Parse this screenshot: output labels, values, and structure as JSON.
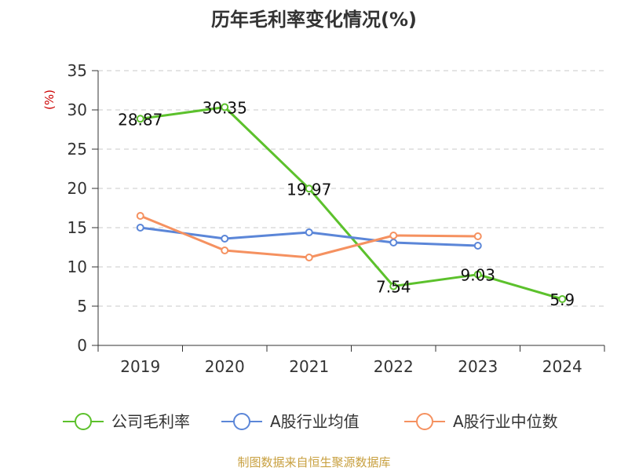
{
  "colors": {
    "axis": "#333333",
    "grid": "#c8c8c8",
    "ylabel": "#cc0000",
    "source": "#c8a040"
  },
  "chart_data": {
    "type": "line",
    "title": "历年毛利率变化情况(%)",
    "ylabel": "(%)",
    "xlabel": "",
    "categories": [
      "2019",
      "2020",
      "2021",
      "2022",
      "2023",
      "2024"
    ],
    "ylim": [
      0,
      35
    ],
    "yticks": [
      0,
      5,
      10,
      15,
      20,
      25,
      30,
      35
    ],
    "grid": true,
    "legend_position": "bottom",
    "series": [
      {
        "name": "公司毛利率",
        "color": "#5cc12c",
        "values": [
          28.87,
          30.35,
          19.97,
          7.54,
          9.03,
          5.9
        ],
        "labels": [
          "28.87",
          "30.35",
          "19.97",
          "7.54",
          "9.03",
          "5.9"
        ]
      },
      {
        "name": "A股行业均值",
        "color": "#5b86d8",
        "values": [
          15.0,
          13.6,
          14.4,
          13.1,
          12.7,
          null
        ],
        "labels": []
      },
      {
        "name": "A股行业中位数",
        "color": "#f59160",
        "values": [
          16.5,
          12.1,
          11.2,
          14.0,
          13.9,
          null
        ],
        "labels": []
      }
    ]
  },
  "source_text": "制图数据来自恒生聚源数据库"
}
